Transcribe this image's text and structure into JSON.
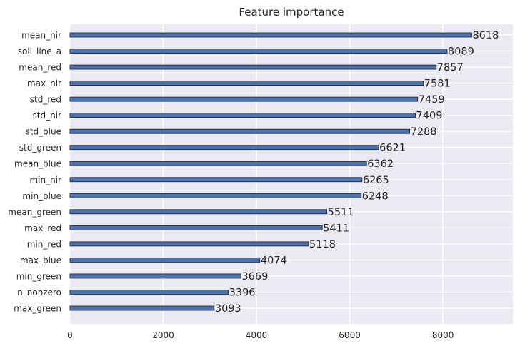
{
  "chart_data": {
    "type": "bar",
    "orientation": "horizontal",
    "title": "Feature importance",
    "xlabel": "",
    "ylabel": "",
    "xlim": [
      0,
      9500
    ],
    "xticks": [
      0,
      2000,
      4000,
      6000,
      8000
    ],
    "grid": true,
    "categories": [
      "mean_nir",
      "soil_line_a",
      "mean_red",
      "max_nir",
      "std_red",
      "std_nir",
      "std_blue",
      "std_green",
      "mean_blue",
      "min_nir",
      "min_blue",
      "mean_green",
      "max_red",
      "min_red",
      "max_blue",
      "min_green",
      "n_nonzero",
      "max_green"
    ],
    "values": [
      8618,
      8089,
      7857,
      7581,
      7459,
      7409,
      7288,
      6621,
      6362,
      6265,
      6248,
      5511,
      5411,
      5118,
      4074,
      3669,
      3396,
      3093
    ],
    "colors": {
      "bar": "#4c72b0",
      "bar_edge": "#1f1f1f",
      "plot_bg": "#eaeaf2",
      "grid": "#ffffff",
      "text": "#262626"
    }
  }
}
